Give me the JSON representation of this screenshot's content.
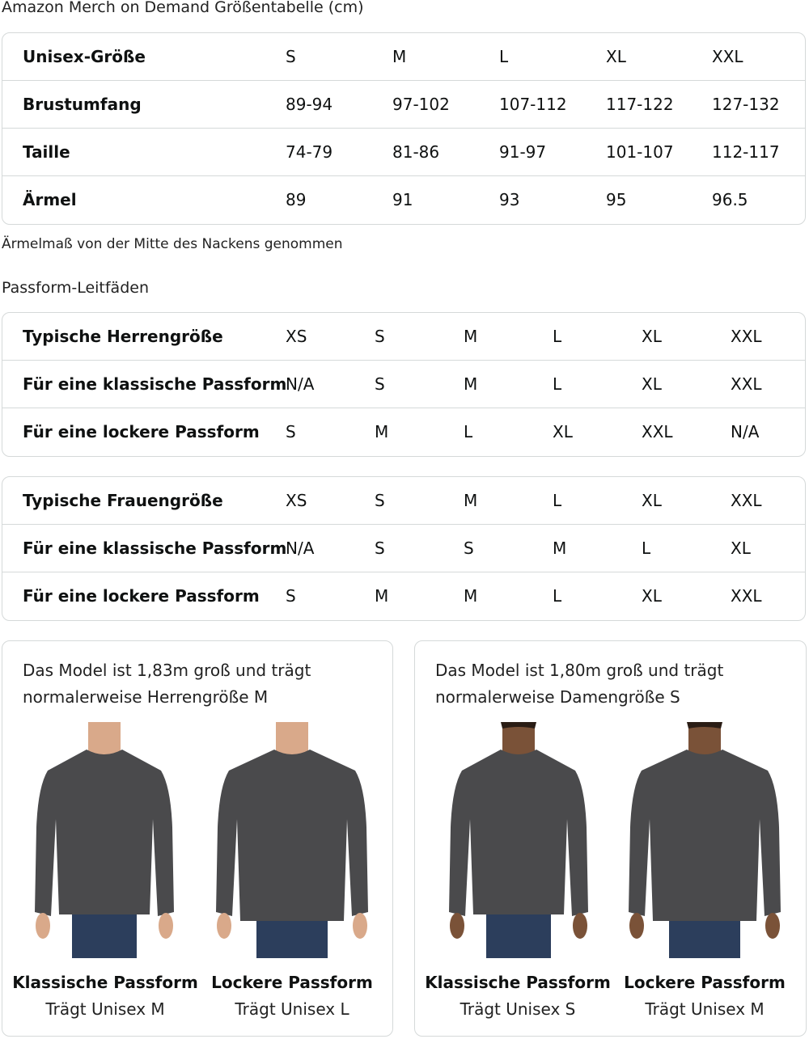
{
  "size_table": {
    "title": "Amazon Merch on Demand Größentabelle (cm)",
    "rows": [
      {
        "label": "Unisex-Größe",
        "values": [
          "S",
          "M",
          "L",
          "XL",
          "XXL"
        ]
      },
      {
        "label": "Brustumfang",
        "values": [
          "89-94",
          "97-102",
          "107-112",
          "117-122",
          "127-132"
        ]
      },
      {
        "label": "Taille",
        "values": [
          "74-79",
          "81-86",
          "91-97",
          "101-107",
          "112-117"
        ]
      },
      {
        "label": "Ärmel",
        "values": [
          "89",
          "91",
          "93",
          "95",
          "96.5"
        ]
      }
    ],
    "note": "Ärmelmaß von der Mitte des Nackens genommen"
  },
  "fit_guides": {
    "title": "Passform-Leitfäden",
    "men": [
      {
        "label": "Typische Herrengröße",
        "values": [
          "XS",
          "S",
          "M",
          "L",
          "XL",
          "XXL"
        ]
      },
      {
        "label": "Für eine klassische Passform",
        "values": [
          "N/A",
          "S",
          "M",
          "L",
          "XL",
          "XXL"
        ]
      },
      {
        "label": "Für eine lockere Passform",
        "values": [
          "S",
          "M",
          "L",
          "XL",
          "XXL",
          "N/A"
        ]
      }
    ],
    "women": [
      {
        "label": "Typische Frauengröße",
        "values": [
          "XS",
          "S",
          "M",
          "L",
          "XL",
          "XXL"
        ]
      },
      {
        "label": "Für eine klassische Passform",
        "values": [
          "N/A",
          "S",
          "S",
          "M",
          "L",
          "XL"
        ]
      },
      {
        "label": "Für eine lockere Passform",
        "values": [
          "S",
          "M",
          "M",
          "L",
          "XL",
          "XXL"
        ]
      }
    ]
  },
  "models": [
    {
      "caption_line1": "Das Model ist 1,83m groß und trägt",
      "caption_line2": "normalerweise Herrengröße M",
      "figures": [
        {
          "title": "Klassische Passform",
          "subtitle": "Trägt Unisex M"
        },
        {
          "title": "Lockere Passform",
          "subtitle": "Trägt Unisex L"
        }
      ]
    },
    {
      "caption_line1": "Das Model ist 1,80m groß und trägt",
      "caption_line2": "normalerweise Damengröße S",
      "figures": [
        {
          "title": "Klassische Passform",
          "subtitle": "Trägt Unisex S"
        },
        {
          "title": "Lockere Passform",
          "subtitle": "Trägt Unisex M"
        }
      ]
    }
  ],
  "colors": {
    "sweater": "#4a4a4c",
    "jeans": "#2c3e5c",
    "border": "#d5d9d9"
  }
}
